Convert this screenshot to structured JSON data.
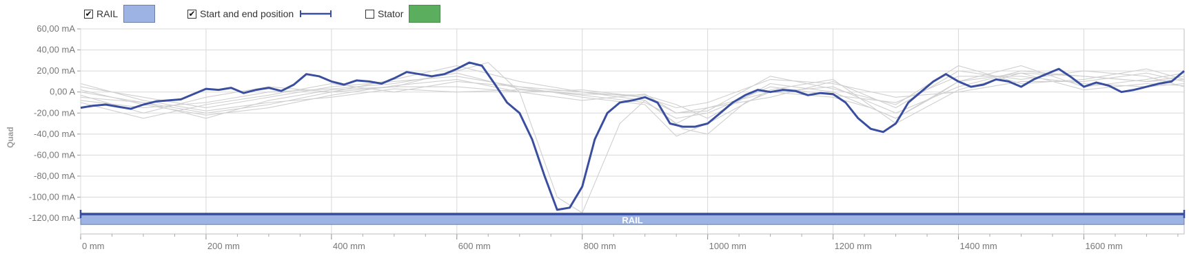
{
  "legend": {
    "rail": {
      "label": "RAIL",
      "checked": true,
      "check_glyph": "✔",
      "color": "#9db3e3"
    },
    "start_end": {
      "label": "Start and end position",
      "checked": true,
      "check_glyph": "✔",
      "color": "#3a4ea0"
    },
    "stator": {
      "label": "Stator",
      "checked": false,
      "check_glyph": "",
      "color": "#5aae5e"
    }
  },
  "colors": {
    "highlight_line": "#3a4ea0",
    "background_lines": "#cfcfcf",
    "rail_fill": "#9db3e3",
    "grid": "#d8d8d8"
  },
  "rail_bar_label": "RAIL",
  "chart_data": {
    "type": "line",
    "ylabel": "Quad",
    "xlim": [
      0,
      1760
    ],
    "ylim": [
      -135,
      60
    ],
    "x_ticks": [
      0,
      200,
      400,
      600,
      800,
      1000,
      1200,
      1400,
      1600
    ],
    "x_tick_labels": [
      "0 mm",
      "200 mm",
      "400 mm",
      "600 mm",
      "800 mm",
      "1000 mm",
      "1200 mm",
      "1400 mm",
      "1600 mm"
    ],
    "y_ticks": [
      60,
      40,
      20,
      0,
      -20,
      -40,
      -60,
      -80,
      -100,
      -120
    ],
    "y_tick_labels": [
      "60,00 mA",
      "40,00 mA",
      "20,00 mA",
      "0,00 A",
      "-20,00 mA",
      "-40,00 mA",
      "-60,00 mA",
      "-80,00 mA",
      "-100,00 mA",
      "-120,00 mA"
    ],
    "grid": true,
    "rail_band": {
      "x": [
        0,
        1760
      ],
      "y": [
        -126,
        -117
      ]
    },
    "start_end_line_y": -116,
    "series": [
      {
        "highlighted": true,
        "x": [
          0,
          20,
          40,
          60,
          80,
          100,
          120,
          140,
          160,
          180,
          200,
          220,
          240,
          260,
          280,
          300,
          320,
          340,
          360,
          380,
          400,
          420,
          440,
          460,
          480,
          500,
          520,
          540,
          560,
          580,
          600,
          620,
          640,
          660,
          680,
          700,
          720,
          740,
          760,
          780,
          800,
          820,
          840,
          860,
          880,
          900,
          920,
          940,
          960,
          980,
          1000,
          1020,
          1040,
          1060,
          1080,
          1100,
          1120,
          1140,
          1160,
          1180,
          1200,
          1220,
          1240,
          1260,
          1280,
          1300,
          1320,
          1340,
          1360,
          1380,
          1400,
          1420,
          1440,
          1460,
          1480,
          1500,
          1520,
          1540,
          1560,
          1580,
          1600,
          1620,
          1640,
          1660,
          1680,
          1700,
          1720,
          1740,
          1760
        ],
        "values": [
          -15,
          -13,
          -12,
          -14,
          -16,
          -12,
          -9,
          -8,
          -7,
          -2,
          3,
          2,
          4,
          -1,
          2,
          4,
          1,
          7,
          17,
          15,
          10,
          7,
          11,
          10,
          8,
          13,
          19,
          17,
          15,
          17,
          22,
          28,
          25,
          8,
          -10,
          -20,
          -45,
          -80,
          -112,
          -110,
          -90,
          -45,
          -20,
          -10,
          -8,
          -5,
          -10,
          -30,
          -33,
          -33,
          -30,
          -20,
          -10,
          -3,
          2,
          0,
          2,
          1,
          -3,
          -1,
          -2,
          -10,
          -25,
          -35,
          -38,
          -30,
          -10,
          0,
          10,
          17,
          10,
          5,
          7,
          12,
          10,
          5,
          12,
          17,
          22,
          14,
          5,
          9,
          6,
          0,
          2,
          5,
          8,
          10,
          20
        ]
      },
      {
        "highlighted": false,
        "x": [
          0,
          100,
          200,
          300,
          400,
          500,
          600,
          650,
          700,
          760,
          800,
          860,
          900,
          960,
          1000,
          1060,
          1100,
          1200,
          1260,
          1300,
          1360,
          1400,
          1500,
          1600,
          1700,
          1760
        ],
        "values": [
          -5,
          -10,
          -20,
          -12,
          0,
          5,
          20,
          28,
          0,
          -100,
          -115,
          -30,
          -8,
          -35,
          -40,
          -10,
          0,
          -5,
          -15,
          -25,
          -5,
          10,
          18,
          15,
          10,
          12
        ]
      },
      {
        "highlighted": false,
        "x": [
          0,
          100,
          200,
          300,
          400,
          500,
          600,
          700,
          800,
          900,
          950,
          1000,
          1100,
          1200,
          1300,
          1400,
          1500,
          1600,
          1700,
          1760
        ],
        "values": [
          5,
          -5,
          -15,
          -5,
          5,
          10,
          15,
          5,
          0,
          -5,
          -20,
          -15,
          0,
          5,
          -20,
          5,
          20,
          15,
          10,
          15
        ]
      },
      {
        "highlighted": false,
        "x": [
          0,
          100,
          200,
          300,
          400,
          500,
          600,
          700,
          800,
          900,
          950,
          1000,
          1100,
          1200,
          1300,
          1400,
          1500,
          1600,
          1700,
          1760
        ],
        "values": [
          -8,
          -15,
          -10,
          0,
          3,
          8,
          18,
          3,
          -3,
          -10,
          -25,
          -20,
          5,
          -3,
          -10,
          15,
          15,
          8,
          5,
          8
        ]
      },
      {
        "highlighted": false,
        "x": [
          0,
          100,
          200,
          300,
          400,
          500,
          600,
          700,
          800,
          900,
          950,
          1000,
          1100,
          1200,
          1300,
          1400,
          1500,
          1600,
          1700,
          1760
        ],
        "values": [
          0,
          -10,
          -25,
          -8,
          2,
          5,
          5,
          0,
          2,
          -5,
          -15,
          -10,
          12,
          8,
          -5,
          0,
          10,
          10,
          18,
          10
        ]
      },
      {
        "highlighted": false,
        "x": [
          0,
          100,
          200,
          300,
          400,
          500,
          600,
          700,
          800,
          900,
          950,
          1000,
          1100,
          1200,
          1300,
          1400,
          1500,
          1600,
          1700,
          1760
        ],
        "values": [
          -3,
          -20,
          -5,
          5,
          0,
          12,
          25,
          10,
          0,
          -8,
          -30,
          -15,
          -5,
          10,
          -15,
          20,
          12,
          20,
          15,
          5
        ]
      },
      {
        "highlighted": false,
        "x": [
          0,
          100,
          200,
          300,
          400,
          500,
          600,
          700,
          800,
          900,
          950,
          1000,
          1100,
          1200,
          1300,
          1400,
          1500,
          1600,
          1700,
          1760
        ],
        "values": [
          8,
          -8,
          -18,
          -10,
          -5,
          3,
          0,
          2,
          -2,
          -3,
          -12,
          -25,
          8,
          0,
          -25,
          10,
          25,
          5,
          12,
          18
        ]
      },
      {
        "highlighted": false,
        "x": [
          0,
          100,
          200,
          300,
          400,
          500,
          600,
          700,
          800,
          900,
          950,
          1000,
          1100,
          1200,
          1300,
          1400,
          1500,
          1600,
          1700,
          1760
        ],
        "values": [
          -10,
          -25,
          -12,
          -3,
          8,
          0,
          10,
          5,
          -5,
          -12,
          -42,
          -30,
          2,
          12,
          -30,
          2,
          18,
          2,
          8,
          6
        ]
      },
      {
        "highlighted": false,
        "x": [
          0,
          100,
          200,
          300,
          400,
          500,
          600,
          700,
          800,
          900,
          950,
          1000,
          1100,
          1200,
          1300,
          1400,
          1500,
          1600,
          1700,
          1760
        ],
        "values": [
          2,
          -12,
          -22,
          -15,
          -3,
          6,
          12,
          0,
          -8,
          -2,
          -20,
          -18,
          15,
          3,
          -12,
          25,
          8,
          12,
          22,
          12
        ]
      }
    ]
  }
}
